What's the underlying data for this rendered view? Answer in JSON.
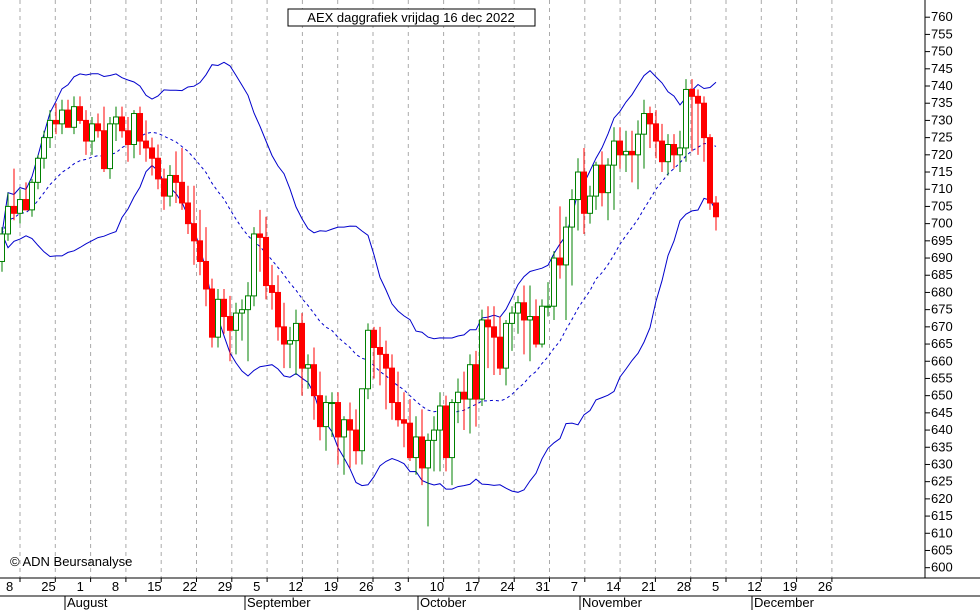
{
  "chart_data": {
    "type": "candlestick",
    "title": "AEX daggrafiek vrijdag 16 dec 2022",
    "copyright": "© ADN Beursanalyse",
    "ylim": [
      597,
      765
    ],
    "y_ticks": [
      600,
      605,
      610,
      615,
      620,
      625,
      630,
      635,
      640,
      645,
      650,
      655,
      660,
      665,
      670,
      675,
      680,
      685,
      690,
      695,
      700,
      705,
      710,
      715,
      720,
      725,
      730,
      735,
      740,
      745,
      750,
      755,
      760
    ],
    "x_day_labels": [
      "8",
      "25",
      "1",
      "8",
      "15",
      "22",
      "29",
      "5",
      "12",
      "19",
      "26",
      "3",
      "10",
      "17",
      "24",
      "31",
      "7",
      "14",
      "21",
      "28",
      "5",
      "12",
      "19",
      "26"
    ],
    "x_month_labels": [
      "August",
      "September",
      "October",
      "November",
      "December"
    ],
    "colors": {
      "up": "#008000",
      "down": "#ff0000",
      "bands": "#0000cc",
      "grid": "#aaaaaa"
    },
    "series": [
      {
        "name": "candles",
        "values": [
          [
            689,
            699,
            686,
            697
          ],
          [
            697,
            709,
            695,
            705
          ],
          [
            705,
            716,
            701,
            703
          ],
          [
            703,
            710,
            700,
            707
          ],
          [
            707,
            712,
            704,
            704
          ],
          [
            704,
            713,
            702,
            712
          ],
          [
            712,
            720,
            710,
            719
          ],
          [
            719,
            727,
            716,
            725
          ],
          [
            725,
            733,
            722,
            730
          ],
          [
            730,
            735,
            726,
            729
          ],
          [
            729,
            736,
            726,
            733
          ],
          [
            733,
            736,
            728,
            728
          ],
          [
            728,
            737,
            726,
            734
          ],
          [
            734,
            737,
            729,
            730
          ],
          [
            730,
            733,
            720,
            724
          ],
          [
            724,
            731,
            720,
            729
          ],
          [
            729,
            732,
            725,
            727
          ],
          [
            727,
            734,
            715,
            716
          ],
          [
            716,
            731,
            713,
            729
          ],
          [
            729,
            734,
            724,
            731
          ],
          [
            731,
            734,
            725,
            727
          ],
          [
            727,
            731,
            718,
            723
          ],
          [
            723,
            733,
            719,
            732
          ],
          [
            732,
            734,
            720,
            724
          ],
          [
            724,
            730,
            718,
            722
          ],
          [
            722,
            725,
            714,
            719
          ],
          [
            719,
            723,
            710,
            713
          ],
          [
            713,
            716,
            704,
            708
          ],
          [
            708,
            717,
            705,
            714
          ],
          [
            714,
            721,
            706,
            712
          ],
          [
            712,
            722,
            704,
            706
          ],
          [
            706,
            711,
            697,
            700
          ],
          [
            700,
            711,
            688,
            695
          ],
          [
            695,
            704,
            685,
            689
          ],
          [
            689,
            699,
            676,
            681
          ],
          [
            681,
            684,
            664,
            667
          ],
          [
            667,
            681,
            664,
            678
          ],
          [
            678,
            681,
            668,
            673
          ],
          [
            673,
            679,
            660,
            669
          ],
          [
            669,
            677,
            662,
            674
          ],
          [
            674,
            678,
            666,
            675
          ],
          [
            675,
            683,
            660,
            679
          ],
          [
            679,
            699,
            676,
            697
          ],
          [
            697,
            704,
            686,
            696
          ],
          [
            696,
            702,
            678,
            682
          ],
          [
            682,
            688,
            675,
            680
          ],
          [
            680,
            685,
            666,
            670
          ],
          [
            670,
            677,
            658,
            665
          ],
          [
            665,
            670,
            658,
            666
          ],
          [
            666,
            675,
            656,
            671
          ],
          [
            671,
            674,
            650,
            658
          ],
          [
            658,
            662,
            652,
            659
          ],
          [
            659,
            664,
            643,
            650
          ],
          [
            650,
            657,
            637,
            641
          ],
          [
            641,
            650,
            634,
            648
          ],
          [
            648,
            651,
            638,
            648
          ],
          [
            648,
            651,
            630,
            638
          ],
          [
            638,
            644,
            627,
            643
          ],
          [
            643,
            648,
            629,
            640
          ],
          [
            640,
            646,
            630,
            634
          ],
          [
            634,
            652,
            630,
            652
          ],
          [
            652,
            671,
            649,
            669
          ],
          [
            669,
            670,
            655,
            664
          ],
          [
            664,
            670,
            653,
            662
          ],
          [
            662,
            666,
            646,
            658
          ],
          [
            658,
            662,
            643,
            648
          ],
          [
            648,
            657,
            641,
            643
          ],
          [
            643,
            651,
            635,
            642
          ],
          [
            642,
            649,
            631,
            632
          ],
          [
            632,
            644,
            627,
            638
          ],
          [
            638,
            646,
            624,
            629
          ],
          [
            629,
            639,
            612,
            637
          ],
          [
            637,
            644,
            628,
            640
          ],
          [
            640,
            651,
            628,
            647
          ],
          [
            647,
            650,
            628,
            632
          ],
          [
            632,
            649,
            624,
            648
          ],
          [
            648,
            655,
            642,
            651
          ],
          [
            651,
            657,
            640,
            649
          ],
          [
            649,
            662,
            639,
            659
          ],
          [
            659,
            663,
            641,
            649
          ],
          [
            649,
            675,
            647,
            672
          ],
          [
            672,
            676,
            658,
            670
          ],
          [
            670,
            676,
            656,
            667
          ],
          [
            667,
            673,
            656,
            658
          ],
          [
            658,
            672,
            653,
            671
          ],
          [
            671,
            676,
            663,
            674
          ],
          [
            674,
            679,
            668,
            677
          ],
          [
            677,
            682,
            662,
            672
          ],
          [
            672,
            682,
            660,
            673
          ],
          [
            673,
            678,
            664,
            665
          ],
          [
            665,
            678,
            664,
            676
          ],
          [
            676,
            683,
            673,
            676
          ],
          [
            676,
            692,
            672,
            690
          ],
          [
            690,
            705,
            684,
            688
          ],
          [
            688,
            702,
            672,
            699
          ],
          [
            699,
            710,
            682,
            707
          ],
          [
            707,
            719,
            698,
            715
          ],
          [
            715,
            722,
            697,
            703
          ],
          [
            703,
            711,
            700,
            708
          ],
          [
            708,
            718,
            704,
            717
          ],
          [
            717,
            721,
            705,
            709
          ],
          [
            709,
            719,
            701,
            717
          ],
          [
            717,
            728,
            704,
            724
          ],
          [
            724,
            728,
            716,
            720
          ],
          [
            720,
            727,
            715,
            721
          ],
          [
            721,
            727,
            712,
            720
          ],
          [
            720,
            730,
            710,
            726
          ],
          [
            726,
            736,
            716,
            732
          ],
          [
            732,
            734,
            722,
            729
          ],
          [
            729,
            733,
            719,
            724
          ],
          [
            724,
            729,
            715,
            718
          ],
          [
            718,
            726,
            714,
            723
          ],
          [
            723,
            726,
            716,
            720
          ],
          [
            720,
            727,
            715,
            722
          ],
          [
            722,
            742,
            718,
            739
          ],
          [
            739,
            742,
            721,
            737
          ],
          [
            737,
            739,
            720,
            735
          ],
          [
            735,
            737,
            718,
            725
          ],
          [
            725,
            726,
            704,
            706
          ],
          [
            706,
            708,
            698,
            702
          ]
        ]
      }
    ],
    "legend": "none",
    "grid": true
  }
}
